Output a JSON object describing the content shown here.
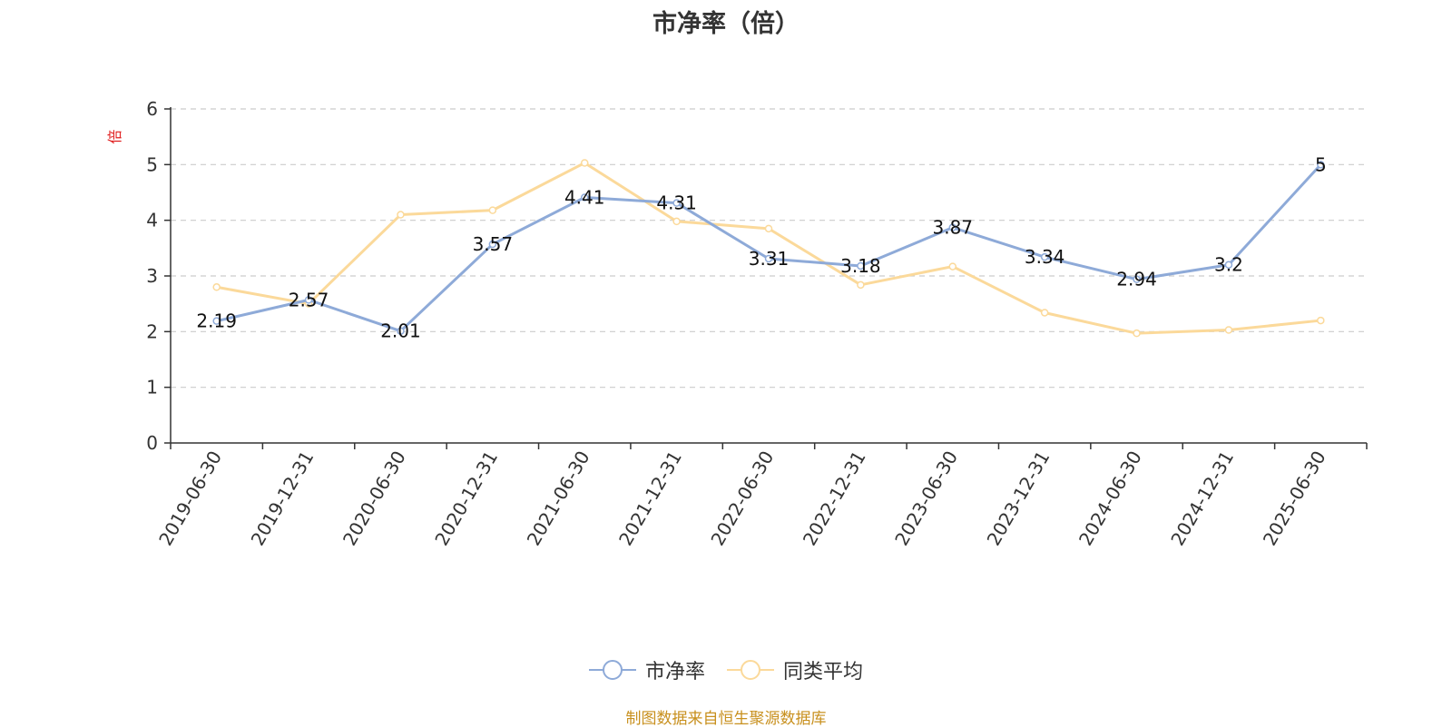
{
  "chart_data": {
    "type": "line",
    "title": "市净率（倍）",
    "ylabel": "倍",
    "xlabel": "",
    "ylim": [
      0,
      6
    ],
    "yticks": [
      0,
      1,
      2,
      3,
      4,
      5,
      6
    ],
    "grid": true,
    "legend_position": "bottom",
    "categories": [
      "2019-06-30",
      "2019-12-31",
      "2020-06-30",
      "2020-12-31",
      "2021-06-30",
      "2021-12-31",
      "2022-06-30",
      "2022-12-31",
      "2023-06-30",
      "2023-12-31",
      "2024-06-30",
      "2024-12-31",
      "2025-06-30"
    ],
    "series": [
      {
        "name": "市净率",
        "color": "#8eaad8",
        "show_labels": true,
        "values": [
          2.19,
          2.57,
          2.01,
          3.57,
          4.41,
          4.31,
          3.31,
          3.18,
          3.87,
          3.34,
          2.94,
          3.2,
          5
        ]
      },
      {
        "name": "同类平均",
        "color": "#fbd99a",
        "show_labels": false,
        "values": [
          2.8,
          2.5,
          4.1,
          4.18,
          5.03,
          3.98,
          3.85,
          2.84,
          3.17,
          2.34,
          1.97,
          2.03,
          2.2
        ]
      }
    ],
    "source_note": "制图数据来自恒生聚源数据库"
  },
  "colors": {
    "axis": "#333333",
    "grid": "#cccccc",
    "ylabel": "#e02020",
    "source": "#c8901e",
    "text": "#333333"
  }
}
